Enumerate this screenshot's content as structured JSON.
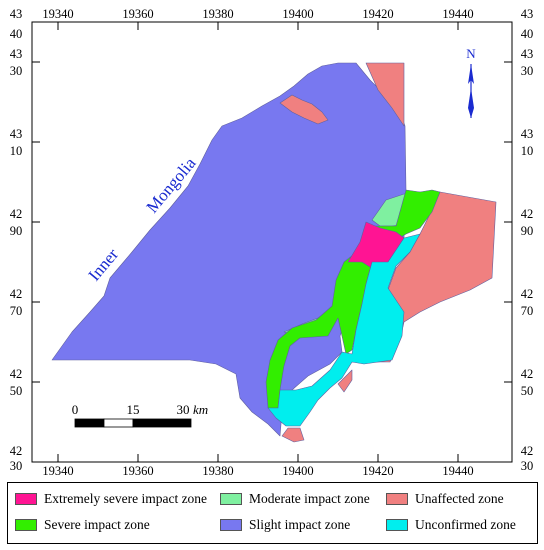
{
  "axis": {
    "x_top": [
      "19340",
      "19360",
      "19380",
      "19400",
      "19420",
      "19440"
    ],
    "x_bottom": [
      "19340",
      "19360",
      "19380",
      "19400",
      "19420",
      "19440"
    ],
    "y_left": [
      [
        "43",
        "40"
      ],
      [
        "43",
        "30"
      ],
      [
        "43",
        "10"
      ],
      [
        "42",
        "90"
      ],
      [
        "42",
        "70"
      ],
      [
        "42",
        "50"
      ],
      [
        "42",
        "30"
      ]
    ],
    "y_right": [
      [
        "43",
        "40"
      ],
      [
        "43",
        "30"
      ],
      [
        "43",
        "10"
      ],
      [
        "42",
        "90"
      ],
      [
        "42",
        "70"
      ],
      [
        "42",
        "50"
      ],
      [
        "42",
        "30"
      ]
    ]
  },
  "labels": {
    "region_word1": "Inner",
    "region_word2": "Mongolia"
  },
  "north": {
    "label": "N"
  },
  "scale_bar": {
    "t0": "0",
    "t1": "15",
    "t2": "30",
    "unit": "km"
  },
  "colors": {
    "extremely_severe": "#ff1493",
    "severe": "#32ee00",
    "moderate": "#7ff0a0",
    "slight": "#7878f0",
    "unaffected": "#f08080",
    "unconfirmed": "#00eeee"
  },
  "legend": [
    {
      "label": "Extremely severe impact zone",
      "color": "#ff1493"
    },
    {
      "label": "Moderate impact zone",
      "color": "#7ff0a0"
    },
    {
      "label": "Unaffected zone",
      "color": "#f08080"
    },
    {
      "label": "Severe impact zone",
      "color": "#32ee00"
    },
    {
      "label": "Slight impact zone",
      "color": "#7878f0"
    },
    {
      "label": "Unconfirmed zone",
      "color": "#00eeee"
    }
  ]
}
